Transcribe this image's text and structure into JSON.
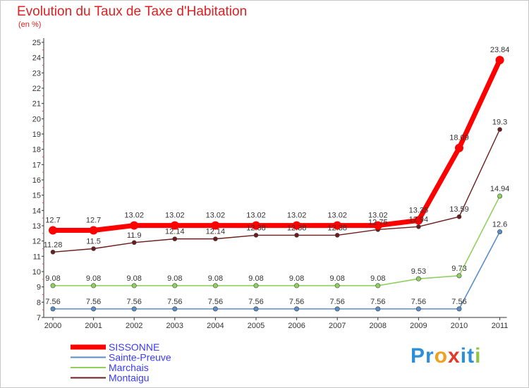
{
  "chart_data": {
    "type": "line",
    "title": "Evolution du Taux de Taxe d'Habitation",
    "ylabel": "(en %)",
    "xlabel": "",
    "categories": [
      "2000",
      "2001",
      "2002",
      "2003",
      "2004",
      "2005",
      "2006",
      "2007",
      "2008",
      "2009",
      "2010",
      "2011"
    ],
    "ylim": [
      7,
      25
    ],
    "yticks": [
      7,
      8,
      9,
      10,
      11,
      12,
      13,
      14,
      15,
      16,
      17,
      18,
      19,
      20,
      21,
      22,
      23,
      24,
      25
    ],
    "grid": false,
    "legend_position": "bottom-left",
    "series": [
      {
        "name": "SISSONNE",
        "color": "#ff0000",
        "values": [
          12.7,
          12.7,
          13.02,
          13.02,
          13.02,
          13.02,
          13.02,
          13.02,
          13.02,
          13.35,
          18.09,
          23.84
        ],
        "labels": [
          "12.7",
          "12.7",
          "13.02",
          "13.02",
          "13.02",
          "13.02",
          "13.02",
          "13.02",
          "13.02",
          "13.35",
          "18.09",
          "23.84"
        ]
      },
      {
        "name": "Sainte-Preuve",
        "color": "#5b8ec8",
        "values": [
          7.56,
          7.56,
          7.56,
          7.56,
          7.56,
          7.56,
          7.56,
          7.56,
          7.56,
          7.56,
          7.56,
          12.6
        ],
        "labels": [
          "7.56",
          "7.56",
          "7.56",
          "7.56",
          "7.56",
          "7.56",
          "7.56",
          "7.56",
          "7.56",
          "7.56",
          "7.56",
          "12.6"
        ]
      },
      {
        "name": "Marchais",
        "color": "#90d060",
        "values": [
          9.08,
          9.08,
          9.08,
          9.08,
          9.08,
          9.08,
          9.08,
          9.08,
          9.08,
          9.53,
          9.73,
          14.94
        ],
        "labels": [
          "9.08",
          "9.08",
          "9.08",
          "9.08",
          "9.08",
          "9.08",
          "9.08",
          "9.08",
          "9.08",
          "9.53",
          "9.73",
          "14.94"
        ]
      },
      {
        "name": "Montaigu",
        "color": "#6b1c1c",
        "values": [
          11.28,
          11.5,
          11.9,
          12.14,
          12.14,
          12.38,
          12.38,
          12.38,
          12.75,
          12.94,
          13.59,
          19.3
        ],
        "labels": [
          "11.28",
          "11.5",
          "11.9",
          "12.14",
          "12.14",
          "12.38",
          "12.38",
          "12.38",
          "12.75",
          "12.94",
          "13.59",
          "19.3"
        ]
      }
    ]
  },
  "brand": {
    "name": "Proxiti",
    "letters": [
      {
        "ch": "P",
        "color": "#2c8fd8"
      },
      {
        "ch": "r",
        "color": "#2c8fd8"
      },
      {
        "ch": "o",
        "color": "#f0a020"
      },
      {
        "ch": "x",
        "color": "#e03a2a"
      },
      {
        "ch": "i",
        "color": "#2c8fd8"
      },
      {
        "ch": "t",
        "color": "#2c8fd8"
      },
      {
        "ch": "i",
        "color": "#8cc63f"
      }
    ]
  }
}
